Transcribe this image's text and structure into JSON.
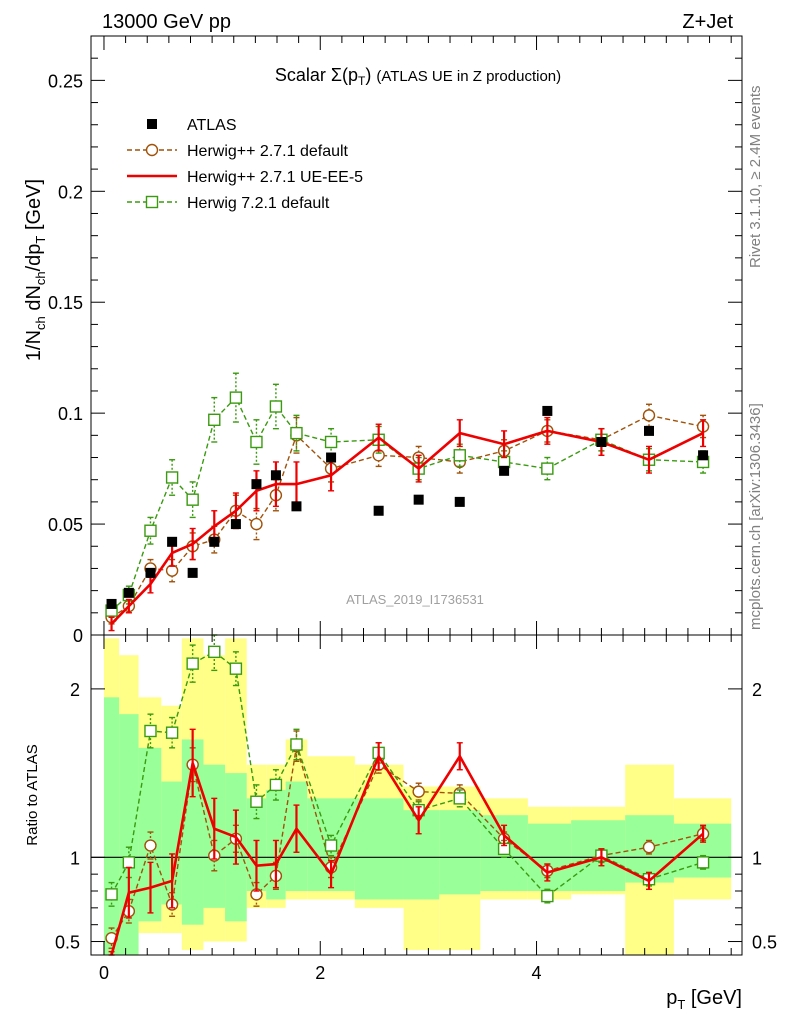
{
  "header": {
    "energy_label": "13000 GeV pp",
    "process_label": "Z+Jet"
  },
  "side_labels": {
    "rivet": "Rivet 3.1.10, ≥ 2.4M events",
    "mcplots": "mcplots.cern.ch [arXiv:1306.3436]"
  },
  "chart_data": [
    {
      "type": "scatter",
      "title": "Scalar Σ(p_T) (ATLAS UE in Z production)",
      "watermark": "ATLAS_2019_I1736531",
      "xlabel": "p_T [GeV]",
      "ylabel": "1/N_ch dN_ch/dp_T [GeV]",
      "xlim": [
        -0.12,
        5.9
      ],
      "ylim": [
        0,
        0.27
      ],
      "y_ticks": [
        {
          "value": 0,
          "label": "0"
        },
        {
          "value": 0.05,
          "label": "0.05"
        },
        {
          "value": 0.1,
          "label": "0.1"
        },
        {
          "value": 0.15,
          "label": "0.15"
        },
        {
          "value": 0.2,
          "label": "0.2"
        },
        {
          "value": 0.25,
          "label": "0.25"
        }
      ],
      "x_ticks": [
        0,
        2,
        4
      ],
      "legend_position": "top-left",
      "series": [
        {
          "name": "ATLAS",
          "style": "data",
          "color": "#000000",
          "x": [
            0.07,
            0.23,
            0.43,
            0.63,
            0.82,
            1.02,
            1.22,
            1.41,
            1.59,
            1.78,
            2.1,
            2.54,
            2.91,
            3.29,
            3.7,
            4.1,
            4.6,
            5.04,
            5.54
          ],
          "y": [
            0.014,
            0.019,
            0.028,
            0.042,
            0.028,
            0.042,
            0.05,
            0.068,
            0.072,
            0.058,
            0.08,
            0.056,
            0.061,
            0.06,
            0.074,
            0.101,
            0.087,
            0.092,
            0.081
          ]
        },
        {
          "name": "Herwig++ 2.7.1 default",
          "style": "dashed-circle",
          "color": "#a0520a",
          "x": [
            0.07,
            0.23,
            0.43,
            0.63,
            0.82,
            1.02,
            1.22,
            1.41,
            1.59,
            1.78,
            2.1,
            2.54,
            2.91,
            3.29,
            3.7,
            4.1,
            4.6,
            5.04,
            5.54
          ],
          "y": [
            0.008,
            0.013,
            0.03,
            0.029,
            0.04,
            0.043,
            0.056,
            0.05,
            0.063,
            0.09,
            0.075,
            0.081,
            0.08,
            0.078,
            0.083,
            0.092,
            0.088,
            0.099,
            0.094
          ],
          "err": [
            0.003,
            0.003,
            0.004,
            0.005,
            0.006,
            0.006,
            0.007,
            0.007,
            0.007,
            0.008,
            0.006,
            0.005,
            0.005,
            0.005,
            0.005,
            0.005,
            0.005,
            0.005,
            0.005
          ]
        },
        {
          "name": "Herwig++ 2.7.1 UE-EE-5",
          "style": "solid-line",
          "color": "#ee0000",
          "x": [
            0.07,
            0.23,
            0.43,
            0.63,
            0.82,
            1.02,
            1.22,
            1.41,
            1.59,
            1.78,
            2.1,
            2.54,
            2.91,
            3.29,
            3.7,
            4.1,
            4.6,
            5.04,
            5.54
          ],
          "y": [
            0.005,
            0.013,
            0.023,
            0.037,
            0.041,
            0.049,
            0.056,
            0.065,
            0.068,
            0.068,
            0.072,
            0.089,
            0.075,
            0.091,
            0.086,
            0.092,
            0.087,
            0.079,
            0.091
          ],
          "err": [
            0.003,
            0.003,
            0.004,
            0.006,
            0.007,
            0.007,
            0.008,
            0.009,
            0.01,
            0.01,
            0.007,
            0.006,
            0.006,
            0.006,
            0.006,
            0.006,
            0.006,
            0.006,
            0.006
          ]
        },
        {
          "name": "Herwig 7.2.1 default",
          "style": "dashed-square",
          "color": "#3a9a10",
          "x": [
            0.07,
            0.23,
            0.43,
            0.63,
            0.82,
            1.02,
            1.22,
            1.41,
            1.59,
            1.78,
            2.1,
            2.54,
            2.91,
            3.29,
            3.7,
            4.1,
            4.6,
            5.04,
            5.54
          ],
          "y": [
            0.011,
            0.018,
            0.047,
            0.071,
            0.061,
            0.097,
            0.107,
            0.087,
            0.103,
            0.091,
            0.087,
            0.088,
            0.075,
            0.081,
            0.078,
            0.075,
            0.088,
            0.079,
            0.078
          ],
          "err": [
            0.003,
            0.004,
            0.006,
            0.008,
            0.008,
            0.01,
            0.011,
            0.01,
            0.01,
            0.008,
            0.006,
            0.006,
            0.005,
            0.005,
            0.005,
            0.005,
            0.005,
            0.005,
            0.005
          ]
        }
      ]
    },
    {
      "type": "line",
      "title": "",
      "ylabel": "Ratio to ATLAS",
      "xlabel": "p_T [GeV]",
      "xlim": [
        -0.12,
        5.9
      ],
      "ylim": [
        0.42,
        2.32
      ],
      "y_ticks": [
        {
          "value": 0.5,
          "label": "0.5"
        },
        {
          "value": 1,
          "label": "1"
        },
        {
          "value": 2,
          "label": "2"
        }
      ],
      "x_ticks": [
        {
          "value": 0,
          "label": "0"
        },
        {
          "value": 2,
          "label": "2"
        },
        {
          "value": 4,
          "label": "4"
        }
      ],
      "reference_line": 1,
      "bands": {
        "x_edges": [
          0,
          0.14,
          0.32,
          0.53,
          0.72,
          0.92,
          1.12,
          1.32,
          1.5,
          1.68,
          1.88,
          2.32,
          2.77,
          3.1,
          3.48,
          3.92,
          4.32,
          4.82,
          5.27,
          5.8
        ],
        "stat_low": [
          0.1,
          0.35,
          0.62,
          0.72,
          0.6,
          0.7,
          0.62,
          0.8,
          0.75,
          0.8,
          0.8,
          0.75,
          0.75,
          0.78,
          0.8,
          0.8,
          0.8,
          0.85,
          0.88
        ],
        "stat_high": [
          1.95,
          1.85,
          1.65,
          1.45,
          1.7,
          1.55,
          1.5,
          1.35,
          1.4,
          1.45,
          1.35,
          1.35,
          1.28,
          1.28,
          1.25,
          1.2,
          1.22,
          1.25,
          1.2
        ],
        "total_low": [
          0.1,
          0.2,
          0.55,
          0.55,
          0.45,
          0.5,
          0.5,
          0.7,
          0.7,
          0.75,
          0.75,
          0.7,
          0.45,
          0.45,
          0.75,
          0.75,
          0.78,
          0.38,
          0.75
        ],
        "total_high": [
          2.3,
          2.2,
          1.95,
          1.9,
          2.3,
          2.2,
          2.3,
          1.55,
          1.55,
          1.7,
          1.6,
          1.55,
          1.42,
          1.42,
          1.35,
          1.3,
          1.3,
          1.55,
          1.35
        ]
      },
      "series": [
        {
          "name": "Herwig++ 2.7.1 default",
          "color": "#a0520a",
          "x": [
            0.07,
            0.23,
            0.43,
            0.63,
            0.82,
            1.02,
            1.22,
            1.41,
            1.59,
            1.78,
            2.1,
            2.54,
            2.91,
            3.29,
            3.7,
            4.1,
            4.6,
            5.04,
            5.54
          ],
          "y": [
            0.52,
            0.68,
            1.07,
            0.72,
            1.55,
            1.01,
            1.11,
            0.78,
            0.89,
            1.66,
            0.94,
            1.55,
            1.39,
            1.38,
            1.11,
            0.92,
            1.01,
            1.06,
            1.14
          ],
          "err": [
            0.06,
            0.07,
            0.08,
            0.07,
            0.1,
            0.09,
            0.08,
            0.07,
            0.08,
            0.09,
            0.06,
            0.05,
            0.05,
            0.05,
            0.04,
            0.04,
            0.04,
            0.04,
            0.04
          ]
        },
        {
          "name": "Herwig++ 2.7.1 UE-EE-5",
          "color": "#ee0000",
          "x": [
            0.07,
            0.23,
            0.43,
            0.63,
            0.82,
            1.02,
            1.22,
            1.41,
            1.59,
            1.78,
            2.1,
            2.54,
            2.91,
            3.29,
            3.7,
            4.1,
            4.6,
            5.04,
            5.54
          ],
          "y": [
            0.36,
            0.79,
            0.82,
            0.86,
            1.56,
            1.17,
            1.12,
            0.95,
            0.96,
            1.17,
            0.9,
            1.6,
            1.22,
            1.6,
            1.13,
            0.91,
            1.0,
            0.86,
            1.14
          ],
          "err": [
            0.08,
            0.15,
            0.15,
            0.16,
            0.2,
            0.18,
            0.16,
            0.15,
            0.14,
            0.14,
            0.08,
            0.08,
            0.08,
            0.08,
            0.06,
            0.05,
            0.05,
            0.05,
            0.05
          ]
        },
        {
          "name": "Herwig 7.2.1 default",
          "color": "#3a9a10",
          "x": [
            0.07,
            0.23,
            0.43,
            0.63,
            0.82,
            1.02,
            1.22,
            1.41,
            1.59,
            1.78,
            2.1,
            2.54,
            2.91,
            3.29,
            3.7,
            4.1,
            4.6,
            5.04,
            5.54
          ],
          "y": [
            0.78,
            0.97,
            1.75,
            1.74,
            2.15,
            2.22,
            2.12,
            1.33,
            1.43,
            1.67,
            1.07,
            1.62,
            1.28,
            1.35,
            1.05,
            0.77,
            1.01,
            0.87,
            0.97
          ],
          "err": [
            0.07,
            0.09,
            0.1,
            0.09,
            0.11,
            0.11,
            0.1,
            0.1,
            0.09,
            0.09,
            0.06,
            0.06,
            0.05,
            0.05,
            0.05,
            0.04,
            0.04,
            0.04,
            0.04
          ]
        }
      ]
    }
  ]
}
